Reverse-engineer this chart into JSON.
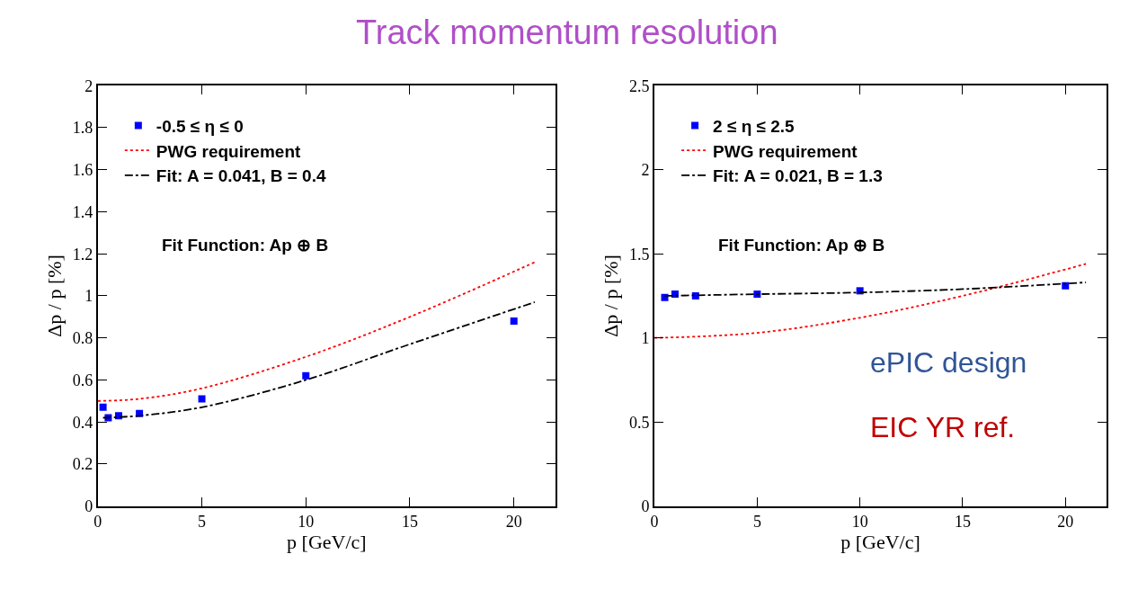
{
  "chart_data": [
    {
      "type": "scatter",
      "title": "Track momentum resolution",
      "xlabel": "p [GeV/c]",
      "ylabel": "Δp / p [%]",
      "xlim": [
        0,
        22
      ],
      "xticks": [
        0,
        5,
        10,
        15,
        20
      ],
      "ylim": [
        0,
        2
      ],
      "yticks": [
        0,
        0.2,
        0.4,
        0.6,
        0.8,
        1,
        1.2,
        1.4,
        1.6,
        1.8,
        2
      ],
      "legend": "top left",
      "annotations": [
        "Fit Function: Ap ⊕ B"
      ],
      "series": [
        {
          "name": "-0.5 ≤ η ≤ 0",
          "marker": "square",
          "color": "#0000ff",
          "x": [
            0.25,
            0.5,
            1,
            2,
            5,
            10,
            20
          ],
          "values": [
            0.47,
            0.42,
            0.43,
            0.44,
            0.51,
            0.62,
            0.88
          ]
        },
        {
          "name": "PWG requirement",
          "type": "line",
          "line_style": "dotted",
          "color": "#ff0000",
          "x": [
            0,
            2,
            5,
            10,
            15,
            21
          ],
          "values": [
            0.5,
            0.51,
            0.56,
            0.71,
            0.9,
            1.16
          ]
        },
        {
          "name": "Fit: A = 0.041, B = 0.4",
          "type": "line",
          "line_style": "dashdot",
          "color": "#000000",
          "x": [
            0.25,
            2,
            5,
            10,
            15,
            21
          ],
          "values": [
            0.42,
            0.43,
            0.47,
            0.6,
            0.77,
            0.97
          ]
        }
      ]
    },
    {
      "type": "scatter",
      "xlabel": "p [GeV/c]",
      "ylabel": "Δp / p [%]",
      "xlim": [
        0,
        22
      ],
      "xticks": [
        0,
        5,
        10,
        15,
        20
      ],
      "ylim": [
        0,
        2.5
      ],
      "yticks": [
        0,
        0.5,
        1,
        1.5,
        2,
        2.5
      ],
      "legend": "top left",
      "annotations": [
        "Fit Function: Ap ⊕ B",
        "ePIC design",
        "EIC YR ref."
      ],
      "series": [
        {
          "name": "2 ≤ η ≤ 2.5",
          "marker": "square",
          "color": "#0000ff",
          "x": [
            0.5,
            1,
            2,
            5,
            10,
            20
          ],
          "values": [
            1.24,
            1.26,
            1.25,
            1.26,
            1.28,
            1.31
          ]
        },
        {
          "name": "PWG requirement",
          "type": "line",
          "line_style": "dotted",
          "color": "#ff0000",
          "x": [
            0,
            5,
            10,
            15,
            21
          ],
          "values": [
            1.0,
            1.03,
            1.12,
            1.25,
            1.44
          ]
        },
        {
          "name": "Fit: A = 0.021, B = 1.3",
          "type": "line",
          "line_style": "dashdot",
          "color": "#000000",
          "x": [
            0.5,
            5,
            10,
            15,
            21
          ],
          "values": [
            1.25,
            1.26,
            1.27,
            1.29,
            1.33
          ]
        }
      ]
    }
  ]
}
